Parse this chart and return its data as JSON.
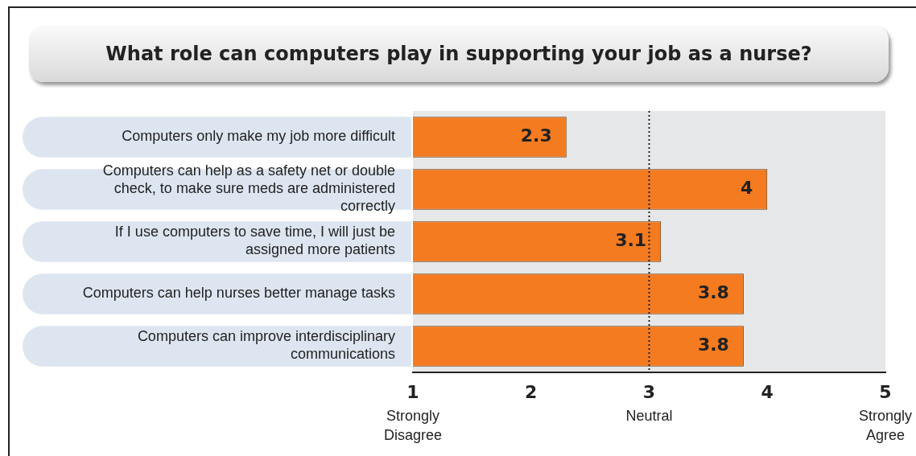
{
  "chart_data": {
    "type": "bar",
    "orientation": "horizontal",
    "title": "What role can computers play in supporting your job as a nurse?",
    "categories": [
      "Computers only make my job more difficult",
      "Computers can help as a safety net or double check, to make sure meds are administered correctly",
      "If I use computers to save time, I will just be assigned more patients",
      "Computers can help nurses better manage tasks",
      "Computers can improve interdisciplinary communications"
    ],
    "values": [
      2.3,
      4,
      3.1,
      3.8,
      3.8
    ],
    "color": "#f47b20",
    "data_labels": true,
    "xlim": [
      1,
      5
    ],
    "xticks": [
      1,
      2,
      3,
      4,
      5
    ],
    "grid": false,
    "legend": false,
    "ref_lines": [
      {
        "axis": "x",
        "value": 3,
        "label": "Neutral",
        "line_style": "dotted",
        "color": "#222222"
      }
    ],
    "annotations": [
      "Strongly Disagree",
      "Strongly Agree"
    ]
  }
}
